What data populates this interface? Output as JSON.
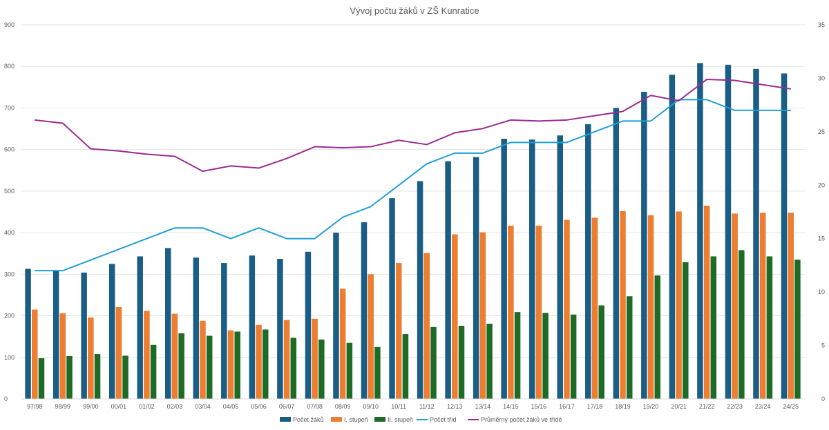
{
  "chart_data": {
    "type": "bar",
    "title": "Vývoj počtu žáků v ZŠ Kunratice",
    "categories": [
      "97/98",
      "98/99",
      "99/00",
      "00/01",
      "01/02",
      "02/03",
      "03/04",
      "04/05",
      "05/06",
      "06/07",
      "07/08",
      "08/09",
      "09/10",
      "10/11",
      "11/12",
      "12/13",
      "13/14",
      "14/15",
      "15/16",
      "16/17",
      "17/18",
      "18/19",
      "19/20",
      "20/21",
      "21/22",
      "22/23",
      "23/24",
      "24/25"
    ],
    "y_left": {
      "min": 0,
      "max": 900,
      "ticks": [
        "0",
        "100",
        "200",
        "300",
        "400",
        "500",
        "600",
        "700",
        "800",
        "900"
      ]
    },
    "y_right": {
      "min": 0,
      "max": 35,
      "ticks": [
        "0",
        "5",
        "10",
        "15",
        "20",
        "25",
        "30",
        "35"
      ]
    },
    "grid": true,
    "legend_position": "bottom",
    "series": [
      {
        "name": "Počet žáků",
        "type": "bar",
        "axis": "left",
        "color": "#1a5e85",
        "values": [
          313,
          309,
          304,
          325,
          343,
          363,
          340,
          327,
          345,
          337,
          354,
          400,
          425,
          483,
          524,
          572,
          582,
          626,
          624,
          634,
          661,
          700,
          739,
          780,
          808,
          804,
          794,
          783
        ]
      },
      {
        "name": "I. stupeň",
        "type": "bar",
        "axis": "left",
        "color": "#ed7d31",
        "values": [
          215,
          206,
          196,
          221,
          212,
          205,
          188,
          165,
          178,
          190,
          193,
          265,
          300,
          327,
          351,
          396,
          401,
          417,
          417,
          431,
          436,
          452,
          442,
          451,
          465,
          446,
          448,
          448
        ]
      },
      {
        "name": "II. stupeň",
        "type": "bar",
        "axis": "left",
        "color": "#1e6b26",
        "values": [
          98,
          103,
          108,
          104,
          130,
          158,
          152,
          162,
          167,
          147,
          143,
          135,
          125,
          156,
          173,
          176,
          181,
          209,
          207,
          203,
          225,
          247,
          297,
          329,
          343,
          358,
          343,
          335
        ]
      },
      {
        "name": "Počet tříd",
        "type": "line",
        "axis": "right",
        "color": "#1f9fd5",
        "values": [
          12,
          12,
          13,
          14,
          15,
          16,
          16,
          15,
          16,
          15,
          15,
          17,
          18,
          20,
          22,
          23,
          23,
          24,
          24,
          24,
          25,
          26,
          26,
          28,
          28,
          27,
          27,
          27
        ]
      },
      {
        "name": "Průměrný počet žáků ve třídě",
        "type": "line",
        "axis": "right",
        "color": "#9a2b92",
        "values": [
          26.1,
          25.8,
          23.4,
          23.2,
          22.9,
          22.7,
          21.3,
          21.8,
          21.6,
          22.5,
          23.6,
          23.5,
          23.6,
          24.2,
          23.8,
          24.9,
          25.3,
          26.1,
          26.0,
          26.1,
          26.5,
          26.9,
          28.4,
          27.9,
          29.9,
          29.8,
          29.4,
          29.0
        ]
      }
    ]
  }
}
